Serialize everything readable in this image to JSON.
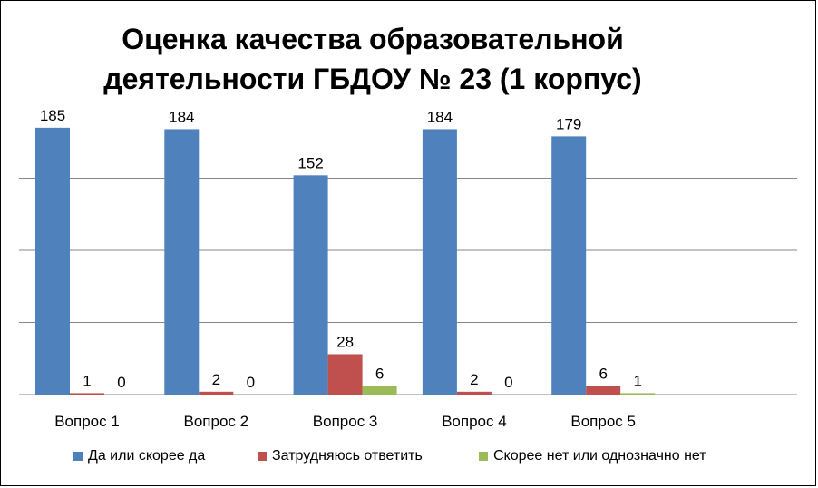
{
  "chart_data": {
    "type": "bar",
    "title": [
      "Оценка качества образовательной",
      "деятельности ГБДОУ № 23 (1 корпус)"
    ],
    "categories": [
      "Вопрос 1",
      "Вопрос 2",
      "Вопрос 3",
      "Вопрос 4",
      "Вопрос 5"
    ],
    "series": [
      {
        "name": "Да или скорее да",
        "color": "#4f81bd",
        "values": [
          185,
          184,
          152,
          184,
          179
        ]
      },
      {
        "name": "Затрудняюсь ответить",
        "color": "#c0504d",
        "values": [
          1,
          2,
          28,
          2,
          6
        ]
      },
      {
        "name": "Скорее нет или однозначно нет",
        "color": "#9bbb59",
        "values": [
          0,
          0,
          6,
          0,
          1
        ]
      }
    ],
    "ylim": [
      0,
      200
    ],
    "gridlines": true,
    "legend_position": "bottom"
  }
}
